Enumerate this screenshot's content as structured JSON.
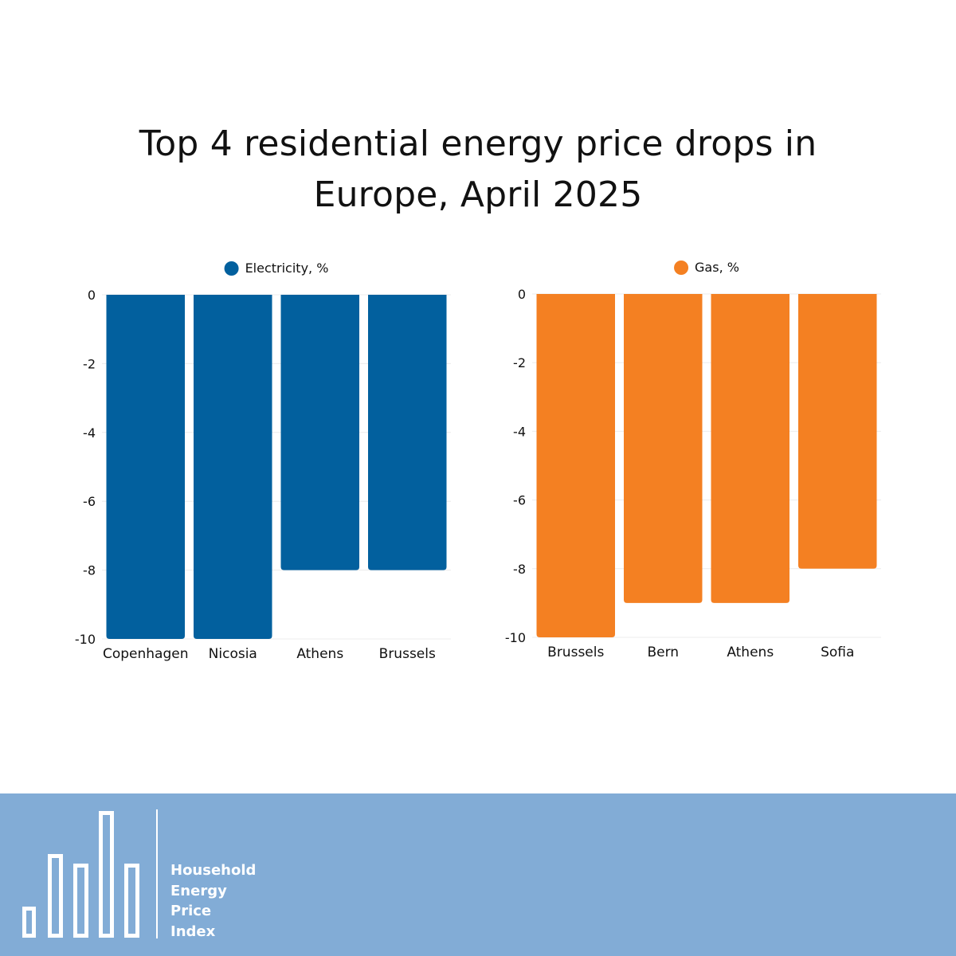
{
  "title_line1": "Top 4 residential energy price drops in",
  "title_line2": "Europe, April 2025",
  "chart_data": [
    {
      "type": "bar",
      "title": "",
      "legend": "Electricity, %",
      "color": "#02609e",
      "categories": [
        "Copenhagen",
        "Nicosia",
        "Athens",
        "Brussels"
      ],
      "values": [
        -10,
        -10,
        -8,
        -8
      ],
      "ylim": [
        -10,
        0
      ],
      "yticks": [
        0,
        -2,
        -4,
        -6,
        -8,
        -10
      ],
      "legend_position": "top-center",
      "grid": true
    },
    {
      "type": "bar",
      "title": "",
      "legend": "Gas, %",
      "color": "#f48022",
      "categories": [
        "Brussels",
        "Bern",
        "Athens",
        "Sofia"
      ],
      "values": [
        -10,
        -9,
        -9,
        -8
      ],
      "ylim": [
        -10,
        0
      ],
      "yticks": [
        0,
        -2,
        -4,
        -6,
        -8,
        -10
      ],
      "legend_position": "top-center",
      "grid": true
    }
  ],
  "footer": {
    "background": "#82acd6",
    "logo_icon": "bar-chart-logo-icon",
    "brand_lines": [
      "Household",
      "Energy",
      "Price",
      "Index"
    ]
  }
}
